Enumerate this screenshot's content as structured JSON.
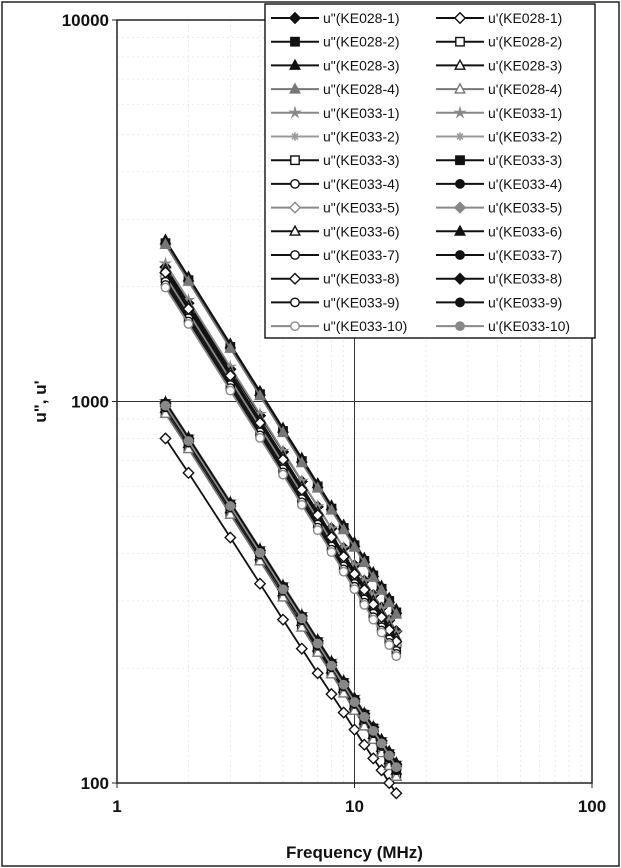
{
  "chart_data": {
    "type": "line",
    "x_scale": "log",
    "y_scale": "log",
    "xlabel": "Frequency (MHz)",
    "ylabel": "u\", u'",
    "xlim": [
      1,
      100
    ],
    "ylim": [
      100,
      10000
    ],
    "x_ticks": [
      "1",
      "10",
      "100"
    ],
    "y_ticks": [
      "100",
      "1000",
      "10000"
    ],
    "grid": "major",
    "legend_position": "top-right",
    "x": [
      1.6,
      2,
      3,
      4,
      5,
      6,
      7,
      8,
      9,
      10,
      11,
      12,
      13,
      14,
      15
    ],
    "series": [
      {
        "name": "u\"(KE028-1)",
        "marker": "diamond",
        "fill": "filled",
        "color": "#111111",
        "values": [
          2250,
          1810,
          1215,
          918,
          738,
          617,
          530,
          465,
          413,
          372,
          339,
          311,
          288,
          267,
          250
        ]
      },
      {
        "name": "u\"(KE028-2)",
        "marker": "square",
        "fill": "filled",
        "color": "#111111",
        "values": [
          2600,
          2080,
          1390,
          1045,
          837,
          698,
          599,
          524,
          466,
          420,
          382,
          350,
          323,
          300,
          280
        ]
      },
      {
        "name": "u\"(KE028-3)",
        "marker": "triangle",
        "fill": "filled",
        "color": "#111111",
        "values": [
          2650,
          2120,
          1415,
          1063,
          851,
          710,
          609,
          533,
          474,
          427,
          388,
          356,
          328,
          305,
          285
        ]
      },
      {
        "name": "u\"(KE028-4)",
        "marker": "triangle",
        "fill": "filled",
        "color": "#777777",
        "values": [
          2580,
          2065,
          1378,
          1035,
          829,
          691,
          593,
          519,
          461,
          415,
          378,
          346,
          320,
          297,
          277
        ]
      },
      {
        "name": "u\"(KE033-1)",
        "marker": "star",
        "fill": "filled",
        "color": "#888888",
        "values": [
          2300,
          1845,
          1233,
          927,
          742,
          619,
          531,
          465,
          413,
          372,
          338,
          310,
          286,
          266,
          248
        ]
      },
      {
        "name": "u\"(KE033-2)",
        "marker": "asterisk",
        "fill": "filled",
        "color": "#999999",
        "values": [
          2200,
          1765,
          1180,
          887,
          710,
          592,
          508,
          445,
          395,
          356,
          324,
          297,
          274,
          254,
          237
        ]
      },
      {
        "name": "u\"(KE033-3)",
        "marker": "square",
        "fill": "open",
        "color": "#111111",
        "values": [
          2150,
          1725,
          1153,
          867,
          694,
          579,
          497,
          435,
          386,
          348,
          316,
          290,
          268,
          249,
          232
        ]
      },
      {
        "name": "u\"(KE033-4)",
        "marker": "circle",
        "fill": "open",
        "color": "#111111",
        "values": [
          2100,
          1685,
          1127,
          847,
          678,
          566,
          486,
          425,
          378,
          340,
          309,
          283,
          262,
          243,
          227
        ]
      },
      {
        "name": "u\"(KE033-5)",
        "marker": "diamond",
        "fill": "open",
        "color": "#888888",
        "values": [
          2130,
          1709,
          1142,
          859,
          688,
          574,
          492,
          431,
          383,
          345,
          314,
          287,
          265,
          246,
          230
        ]
      },
      {
        "name": "u\"(KE033-6)",
        "marker": "triangle",
        "fill": "open",
        "color": "#111111",
        "values": [
          2220,
          1781,
          1191,
          895,
          717,
          598,
          513,
          449,
          399,
          359,
          327,
          300,
          277,
          257,
          240
        ]
      },
      {
        "name": "u\"(KE033-7)",
        "marker": "circle",
        "fill": "open",
        "color": "#111111",
        "values": [
          2060,
          1653,
          1105,
          831,
          665,
          555,
          476,
          417,
          370,
          333,
          303,
          278,
          256,
          238,
          222
        ]
      },
      {
        "name": "u\"(KE033-8)",
        "marker": "diamond",
        "fill": "open",
        "color": "#111111",
        "values": [
          2180,
          1749,
          1169,
          879,
          704,
          587,
          504,
          441,
          392,
          353,
          321,
          294,
          272,
          252,
          235
        ]
      },
      {
        "name": "u\"(KE033-9)",
        "marker": "circle",
        "fill": "open",
        "color": "#111111",
        "values": [
          2020,
          1621,
          1084,
          815,
          652,
          544,
          467,
          409,
          363,
          327,
          297,
          272,
          251,
          233,
          218
        ]
      },
      {
        "name": "u\"(KE033-10)",
        "marker": "circle",
        "fill": "open",
        "color": "#888888",
        "values": [
          1990,
          1597,
          1068,
          803,
          643,
          536,
          460,
          403,
          358,
          322,
          293,
          268,
          248,
          230,
          215
        ]
      },
      {
        "name": "u'(KE028-1)",
        "marker": "diamond",
        "fill": "open",
        "color": "#111111",
        "values": [
          800,
          650,
          440,
          333,
          268,
          225,
          194,
          171,
          153,
          138,
          126,
          116,
          108,
          100,
          94
        ]
      },
      {
        "name": "u'(KE028-2)",
        "marker": "square",
        "fill": "open",
        "color": "#111111",
        "values": [
          940,
          760,
          512,
          386,
          310,
          259,
          223,
          195,
          174,
          157,
          143,
          131,
          121,
          113,
          106
        ]
      },
      {
        "name": "u'(KE028-3)",
        "marker": "triangle",
        "fill": "open",
        "color": "#111111",
        "values": [
          960,
          776,
          523,
          394,
          317,
          265,
          227,
          199,
          177,
          160,
          146,
          134,
          124,
          115,
          108
        ]
      },
      {
        "name": "u'(KE028-4)",
        "marker": "triangle",
        "fill": "open",
        "color": "#777777",
        "values": [
          930,
          752,
          506,
          382,
          307,
          256,
          220,
          193,
          172,
          155,
          141,
          130,
          120,
          111,
          104
        ]
      },
      {
        "name": "u'(KE033-1)",
        "marker": "star",
        "fill": "filled",
        "color": "#888888",
        "values": [
          1000,
          808,
          546,
          412,
          331,
          277,
          238,
          209,
          186,
          168,
          153,
          141,
          130,
          121,
          113
        ]
      },
      {
        "name": "u'(KE033-2)",
        "marker": "asterisk",
        "fill": "filled",
        "color": "#999999",
        "values": [
          990,
          800,
          540,
          407,
          327,
          274,
          236,
          207,
          184,
          166,
          152,
          140,
          129,
          120,
          112
        ]
      },
      {
        "name": "u'(KE033-3)",
        "marker": "square",
        "fill": "filled",
        "color": "#111111",
        "values": [
          985,
          796,
          537,
          405,
          326,
          272,
          234,
          205,
          183,
          165,
          151,
          139,
          128,
          119,
          111
        ]
      },
      {
        "name": "u'(KE033-4)",
        "marker": "circle",
        "fill": "filled",
        "color": "#111111",
        "values": [
          975,
          788,
          532,
          401,
          322,
          270,
          232,
          203,
          181,
          163,
          149,
          137,
          127,
          118,
          110
        ]
      },
      {
        "name": "u'(KE033-5)",
        "marker": "diamond",
        "fill": "filled",
        "color": "#888888",
        "values": [
          980,
          792,
          534,
          403,
          324,
          271,
          233,
          204,
          182,
          164,
          150,
          138,
          128,
          119,
          111
        ]
      },
      {
        "name": "u'(KE033-6)",
        "marker": "triangle",
        "fill": "filled",
        "color": "#111111",
        "values": [
          995,
          804,
          543,
          410,
          329,
          275,
          237,
          208,
          185,
          167,
          152,
          140,
          130,
          121,
          113
        ]
      },
      {
        "name": "u'(KE033-7)",
        "marker": "circle",
        "fill": "filled",
        "color": "#111111",
        "values": [
          970,
          784,
          529,
          399,
          320,
          268,
          230,
          202,
          180,
          162,
          148,
          136,
          126,
          117,
          109
        ]
      },
      {
        "name": "u'(KE033-8)",
        "marker": "diamond",
        "fill": "filled",
        "color": "#111111",
        "values": [
          990,
          800,
          540,
          407,
          327,
          274,
          236,
          207,
          184,
          166,
          152,
          140,
          129,
          120,
          112
        ]
      },
      {
        "name": "u'(KE033-9)",
        "marker": "circle",
        "fill": "filled",
        "color": "#111111",
        "values": [
          965,
          780,
          527,
          397,
          319,
          267,
          229,
          201,
          179,
          161,
          147,
          135,
          125,
          116,
          108
        ]
      },
      {
        "name": "u'(KE033-10)",
        "marker": "circle",
        "fill": "filled",
        "color": "#888888",
        "values": [
          975,
          788,
          532,
          401,
          322,
          270,
          232,
          203,
          181,
          163,
          149,
          137,
          127,
          118,
          110
        ]
      }
    ],
    "legend_columns": [
      [
        "u\"(KE028-1)",
        "u\"(KE028-2)",
        "u\"(KE028-3)",
        "u\"(KE028-4)",
        "u\"(KE033-1)",
        "u\"(KE033-2)",
        "u\"(KE033-3)",
        "u\"(KE033-4)",
        "u\"(KE033-5)",
        "u\"(KE033-6)",
        "u\"(KE033-7)",
        "u\"(KE033-8)",
        "u\"(KE033-9)",
        "u\"(KE033-10)"
      ],
      [
        "u'(KE028-1)",
        "u'(KE028-2)",
        "u'(KE028-3)",
        "u'(KE028-4)",
        "u'(KE033-1)",
        "u'(KE033-2)",
        "u'(KE033-3)",
        "u'(KE033-4)",
        "u'(KE033-5)",
        "u'(KE033-6)",
        "u'(KE033-7)",
        "u'(KE033-8)",
        "u'(KE033-9)",
        "u'(KE033-10)"
      ]
    ]
  }
}
